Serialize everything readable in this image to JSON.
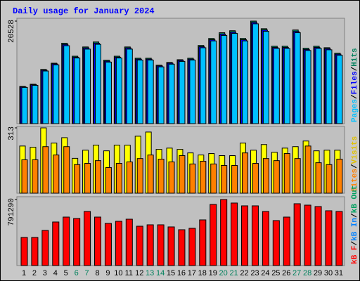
{
  "chart_data": [
    {
      "type": "bar",
      "title": "Daily usage for January 2024",
      "ylim": [
        0,
        20528
      ],
      "yticks": [
        20528
      ],
      "separator": "/",
      "legend": [
        {
          "text": "Pages",
          "color": "#00c0ff"
        },
        {
          "text": "Files",
          "color": "#0000ff"
        },
        {
          "text": "Hits",
          "color": "#00805c"
        }
      ],
      "series": [
        {
          "color": "#00805c",
          "values": [
            7450,
            7900,
            10850,
            12100,
            16100,
            13500,
            15350,
            16350,
            12700,
            13500,
            15350,
            13100,
            13100,
            11700,
            12250,
            12800,
            13100,
            15650,
            17050,
            18200,
            18600,
            17050,
            20528,
            19000,
            15500,
            15500,
            18750,
            15100,
            15500,
            15200,
            14100
          ]
        },
        {
          "color": "#0000ff",
          "values": [
            7350,
            7800,
            10700,
            11950,
            15850,
            13300,
            15150,
            16100,
            12500,
            13300,
            15150,
            12900,
            12900,
            11550,
            12100,
            12650,
            12900,
            15400,
            16800,
            17900,
            18300,
            16800,
            20250,
            18750,
            15250,
            15250,
            18450,
            14850,
            15250,
            15000,
            13900
          ]
        },
        {
          "color": "#00c0ff",
          "values": [
            7253,
            7664,
            10537,
            11769,
            15601,
            13138,
            14917,
            15875,
            12317,
            13138,
            14917,
            12727,
            12727,
            11359,
            11906,
            12453,
            12727,
            15190,
            16559,
            17654,
            18064,
            16559,
            19980,
            18475,
            15054,
            15054,
            18201,
            14643,
            15054,
            14780,
            13685
          ]
        }
      ]
    },
    {
      "type": "bar",
      "ylim": [
        0,
        313
      ],
      "yticks": [
        313
      ],
      "separator": "/",
      "legend": [
        {
          "text": "Sites",
          "color": "#ff8000"
        },
        {
          "text": "Visits",
          "color": "#e0c000"
        }
      ],
      "series": [
        {
          "color": "#ffff00",
          "values": [
            226,
            220,
            313,
            240,
            266,
            167,
            206,
            230,
            203,
            230,
            230,
            273,
            293,
            210,
            216,
            210,
            193,
            183,
            190,
            180,
            180,
            240,
            206,
            233,
            196,
            216,
            223,
            250,
            203,
            206,
            206
          ]
        },
        {
          "color": "#ff8000",
          "values": [
            160,
            160,
            223,
            183,
            223,
            137,
            143,
            156,
            123,
            143,
            150,
            166,
            183,
            163,
            150,
            180,
            140,
            153,
            140,
            133,
            133,
            193,
            143,
            166,
            156,
            190,
            166,
            226,
            146,
            137,
            163
          ]
        }
      ]
    },
    {
      "type": "bar",
      "ylim": [
        0,
        791290
      ],
      "yticks": [
        791290
      ],
      "separator": "/",
      "legend": [
        {
          "text": "kB F",
          "color": "#ff0000"
        },
        {
          "text": "kB In",
          "color": "#0080ff"
        },
        {
          "text": "kB Out",
          "color": "#00a060"
        }
      ],
      "categories": [
        "1",
        "2",
        "3",
        "4",
        "5",
        "6",
        "7",
        "8",
        "9",
        "10",
        "11",
        "12",
        "13",
        "14",
        "15",
        "16",
        "17",
        "18",
        "19",
        "20",
        "21",
        "22",
        "23",
        "24",
        "25",
        "26",
        "27",
        "28",
        "29",
        "30",
        "31"
      ],
      "category_colors": [
        "#000",
        "#000",
        "#000",
        "#000",
        "#000",
        "#00805c",
        "#00805c",
        "#000",
        "#000",
        "#000",
        "#000",
        "#000",
        "#00805c",
        "#00805c",
        "#000",
        "#000",
        "#000",
        "#000",
        "#000",
        "#00805c",
        "#00805c",
        "#000",
        "#000",
        "#000",
        "#000",
        "#000",
        "#00805c",
        "#00805c",
        "#000",
        "#000",
        "#000"
      ],
      "series": [
        {
          "color": "#ff0000",
          "values": [
            336700,
            336700,
            420900,
            521900,
            580800,
            564000,
            648200,
            580800,
            505100,
            530300,
            555600,
            471400,
            488200,
            488200,
            463000,
            429300,
            446200,
            547200,
            732400,
            791290,
            749200,
            715500,
            715500,
            648200,
            538800,
            580800,
            740800,
            724000,
            707100,
            656600,
            648200
          ]
        }
      ]
    }
  ]
}
